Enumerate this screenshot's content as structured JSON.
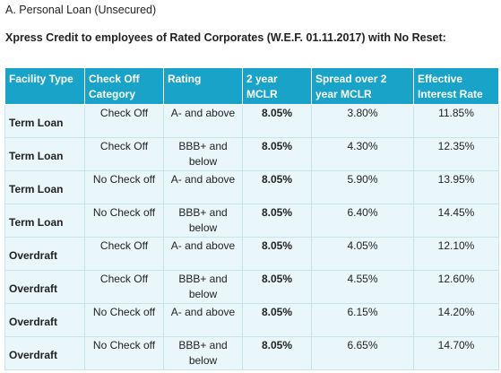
{
  "section_title": "A. Personal Loan (Unsecured)",
  "subtitle": "Xpress Credit to employees of Rated Corporates (W.E.F. 01.11.2017) with No Reset:",
  "table": {
    "headers": [
      "Facility Type",
      "Check Off Category",
      "Rating",
      "2 year MCLR",
      "Spread over 2 year MCLR",
      "Effective Interest Rate"
    ],
    "rows": [
      [
        "Term Loan",
        "Check Off",
        "A- and above",
        "8.05%",
        "3.80%",
        "11.85%"
      ],
      [
        "Term Loan",
        "Check Off",
        "BBB+ and below",
        "8.05%",
        "4.30%",
        "12.35%"
      ],
      [
        "Term Loan",
        "No Check off",
        "A- and above",
        "8.05%",
        "5.90%",
        "13.95%"
      ],
      [
        "Term Loan",
        "No Check off",
        "BBB+ and below",
        "8.05%",
        "6.40%",
        "14.45%"
      ],
      [
        "Overdraft",
        "Check Off",
        "A- and above",
        "8.05%",
        "4.05%",
        "12.10%"
      ],
      [
        "Overdraft",
        "Check Off",
        "BBB+ and below",
        "8.05%",
        "4.55%",
        "12.60%"
      ],
      [
        "Overdraft",
        "No Check off",
        "A- and above",
        "8.05%",
        "6.15%",
        "14.20%"
      ],
      [
        "Overdraft",
        "No Check off",
        "BBB+ and below",
        "8.05%",
        "6.65%",
        "14.70%"
      ]
    ]
  },
  "colors": {
    "header_bg": "#1aa3c9",
    "row_bg": "#e9f6fa",
    "border": "#c7e3ec"
  }
}
